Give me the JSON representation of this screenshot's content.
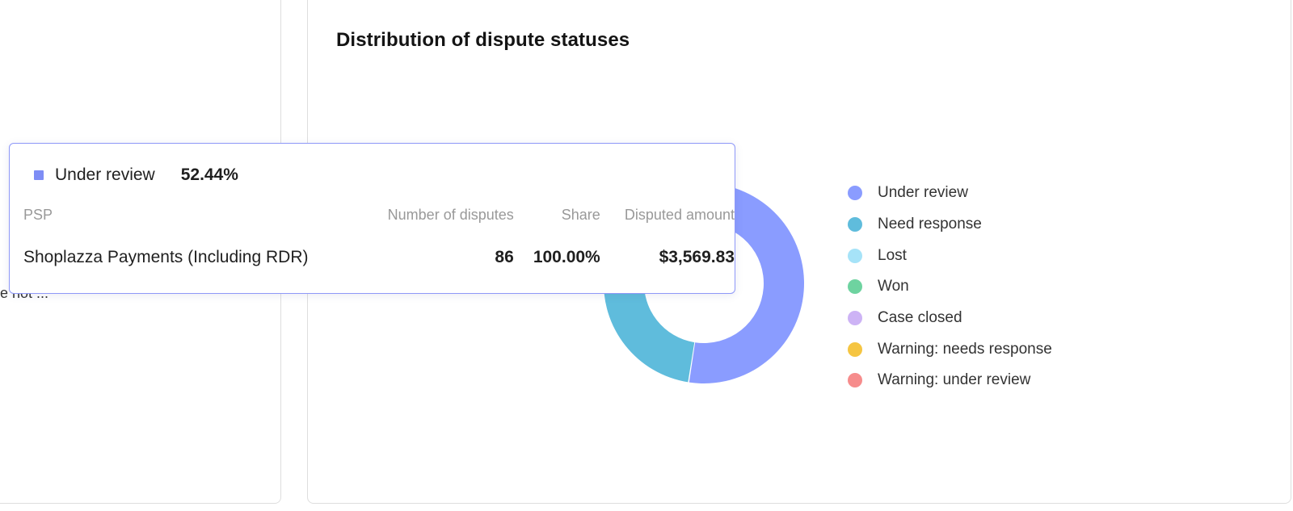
{
  "left_card": {
    "snippet": "e not ..."
  },
  "card": {
    "title": "Distribution of dispute statuses"
  },
  "chart_data": {
    "type": "pie",
    "title": "Distribution of dispute statuses",
    "donut": true,
    "legend_position": "right",
    "series": [
      {
        "name": "Under review",
        "value": 52.44,
        "color": "#8a9cff"
      },
      {
        "name": "Need response",
        "value": 47.56,
        "color": "#5fbcdc"
      },
      {
        "name": "Lost",
        "value": 0,
        "color": "#a6e3f8"
      },
      {
        "name": "Won",
        "value": 0,
        "color": "#6ed3a0"
      },
      {
        "name": "Case closed",
        "value": 0,
        "color": "#cdb3f5"
      },
      {
        "name": "Warning: needs response",
        "value": 0,
        "color": "#f5c542"
      },
      {
        "name": "Warning: under review",
        "value": 0,
        "color": "#f68c8c"
      }
    ]
  },
  "tooltip": {
    "status": "Under review",
    "percent": "52.44%",
    "swatch_color": "#7e8df5",
    "columns": {
      "psp": "PSP",
      "count": "Number of disputes",
      "share": "Share",
      "amount": "Disputed amount"
    },
    "rows": [
      {
        "psp": "Shoplazza Payments (Including RDR)",
        "count": "86",
        "share": "100.00%",
        "amount": "$3,569.83"
      }
    ]
  }
}
